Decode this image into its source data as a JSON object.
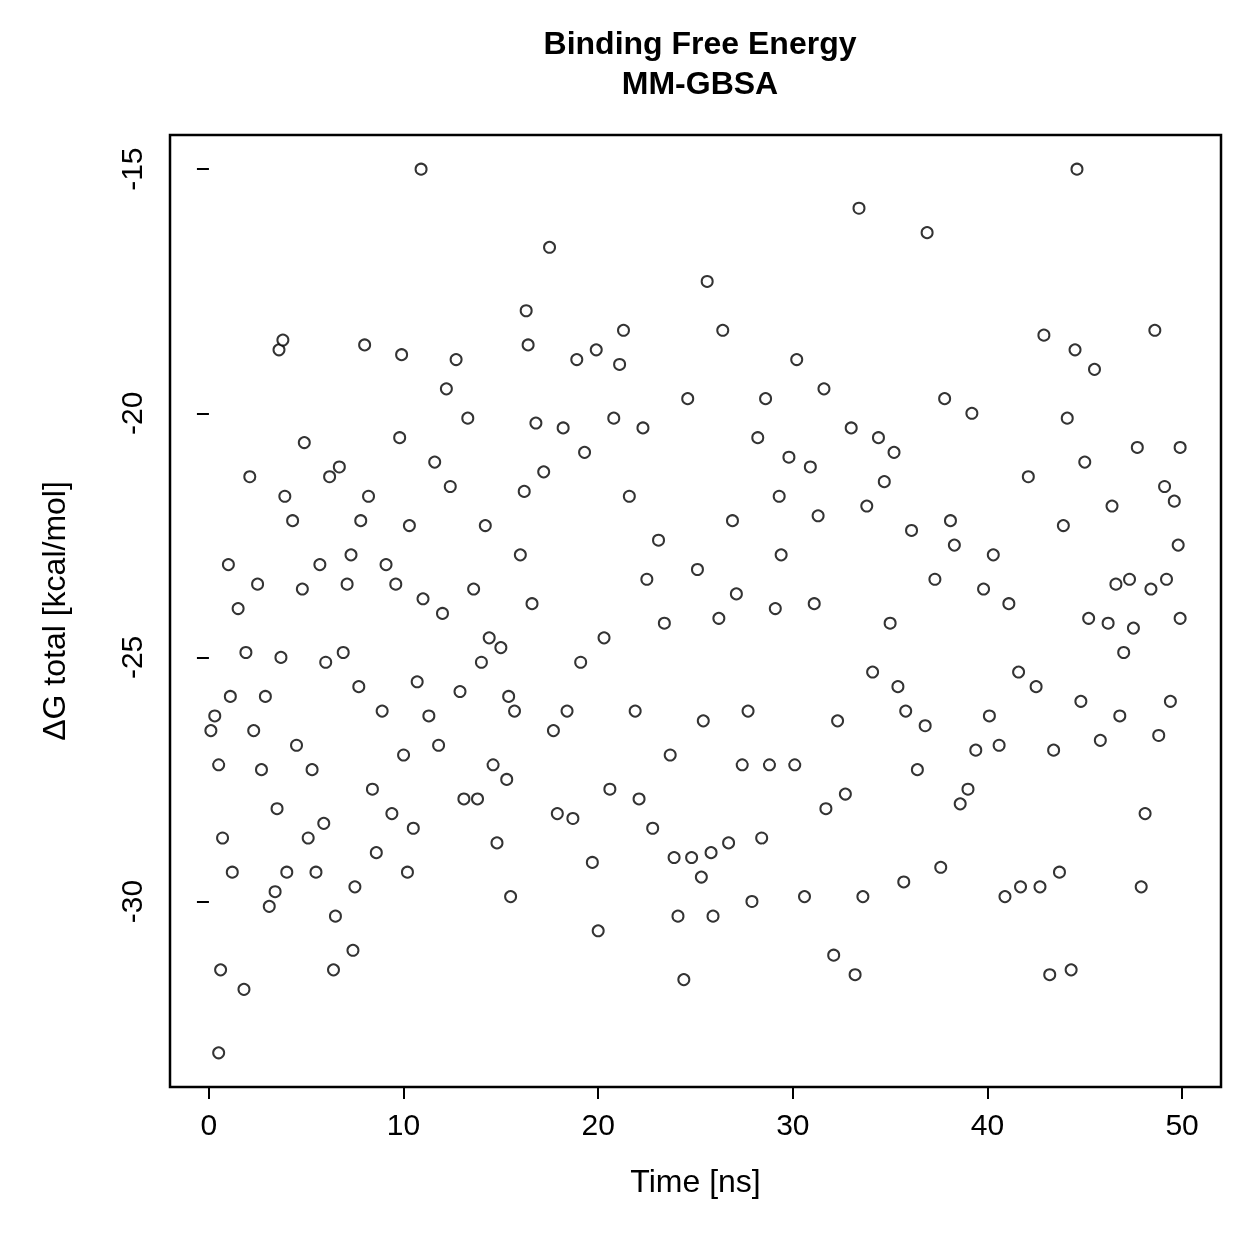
{
  "chart_data": {
    "type": "scatter",
    "title": "Binding Free Energy",
    "subtitle": "MM-GBSA",
    "xlabel": "Time [ns]",
    "ylabel": "ΔG total [kcal/mol]",
    "xlim": [
      -2,
      52
    ],
    "ylim": [
      -33.8,
      -14.3
    ],
    "xticks": [
      0,
      10,
      20,
      30,
      40,
      50
    ],
    "yticks": [
      -30,
      -25,
      -20,
      -15
    ],
    "grid": false,
    "marker": "circle",
    "series": [
      {
        "color": "#000000",
        "x": [
          0.1,
          0.3,
          0.5,
          0.5,
          0.6,
          0.7,
          1.0,
          1.1,
          1.2,
          1.5,
          1.8,
          1.9,
          2.1,
          2.3,
          2.5,
          2.7,
          2.9,
          3.1,
          3.4,
          3.5,
          3.6,
          3.8,
          3.7,
          3.9,
          4.0,
          4.3,
          4.5,
          4.8,
          4.9,
          5.1,
          5.3,
          5.5,
          5.7,
          5.9,
          6.0,
          6.2,
          6.4,
          6.5,
          6.7,
          6.9,
          7.1,
          7.3,
          7.4,
          7.5,
          7.7,
          7.8,
          8.0,
          8.2,
          8.4,
          8.6,
          8.9,
          9.1,
          9.4,
          9.6,
          9.8,
          9.9,
          10.0,
          10.2,
          10.3,
          10.5,
          10.7,
          10.9,
          11.0,
          11.3,
          11.6,
          11.8,
          12.0,
          12.2,
          12.4,
          12.7,
          12.9,
          13.1,
          13.3,
          13.6,
          13.8,
          14.0,
          14.2,
          14.4,
          14.6,
          14.8,
          15.0,
          15.3,
          15.4,
          15.5,
          15.7,
          16.0,
          16.2,
          16.3,
          16.4,
          16.6,
          16.8,
          17.2,
          17.5,
          17.7,
          17.9,
          18.2,
          18.4,
          18.7,
          18.9,
          19.1,
          19.3,
          19.7,
          19.9,
          20.0,
          20.3,
          20.6,
          20.8,
          21.1,
          21.3,
          21.6,
          21.9,
          22.1,
          22.3,
          22.5,
          22.8,
          23.1,
          23.4,
          23.7,
          23.9,
          24.1,
          24.4,
          24.6,
          24.8,
          25.1,
          25.3,
          25.4,
          25.6,
          25.8,
          25.9,
          26.2,
          26.4,
          26.7,
          26.9,
          27.1,
          27.4,
          27.7,
          27.9,
          28.2,
          28.4,
          28.6,
          28.8,
          29.1,
          29.3,
          29.4,
          29.8,
          30.1,
          30.2,
          30.6,
          30.9,
          31.1,
          31.3,
          31.6,
          31.7,
          32.1,
          32.3,
          32.7,
          33.0,
          33.2,
          33.4,
          33.6,
          33.8,
          34.1,
          34.4,
          34.7,
          35.0,
          35.2,
          35.4,
          35.7,
          35.8,
          36.1,
          36.4,
          36.8,
          36.9,
          37.3,
          37.6,
          37.8,
          38.1,
          38.3,
          38.6,
          39.0,
          39.2,
          39.4,
          39.8,
          40.1,
          40.3,
          40.6,
          40.9,
          41.1,
          41.6,
          41.7,
          42.1,
          42.5,
          42.7,
          42.9,
          43.2,
          43.4,
          43.7,
          43.9,
          44.1,
          44.3,
          44.5,
          44.6,
          44.8,
          45.0,
          45.2,
          45.5,
          45.8,
          46.2,
          46.4,
          46.6,
          46.8,
          47.0,
          47.3,
          47.5,
          47.7,
          47.9,
          48.1,
          48.4,
          48.6,
          48.8,
          49.1,
          49.2,
          49.4,
          49.6,
          49.8,
          49.9,
          49.9
        ],
        "values": [
          -26.5,
          -26.2,
          -27.2,
          -33.1,
          -31.4,
          -28.7,
          -23.1,
          -25.8,
          -29.4,
          -24.0,
          -31.8,
          -24.9,
          -21.3,
          -26.5,
          -23.5,
          -27.3,
          -25.8,
          -30.1,
          -29.8,
          -28.1,
          -18.7,
          -18.5,
          -25.0,
          -21.7,
          -29.4,
          -22.2,
          -26.8,
          -23.6,
          -20.6,
          -28.7,
          -27.3,
          -29.4,
          -23.1,
          -28.4,
          -25.1,
          -21.3,
          -31.4,
          -30.3,
          -21.1,
          -24.9,
          -23.5,
          -22.9,
          -31.0,
          -29.7,
          -25.6,
          -22.2,
          -18.6,
          -21.7,
          -27.7,
          -29.0,
          -26.1,
          -23.1,
          -28.2,
          -23.5,
          -20.5,
          -18.8,
          -27.0,
          -29.4,
          -22.3,
          -28.5,
          -25.5,
          -15.0,
          -23.8,
          -26.2,
          -21.0,
          -26.8,
          -24.1,
          -19.5,
          -21.5,
          -18.9,
          -25.7,
          -27.9,
          -20.1,
          -23.6,
          -27.9,
          -25.1,
          -22.3,
          -24.6,
          -27.2,
          -28.8,
          -24.8,
          -27.5,
          -25.8,
          -29.9,
          -26.1,
          -22.9,
          -21.6,
          -17.9,
          -18.6,
          -23.9,
          -20.2,
          -21.2,
          -16.6,
          -26.5,
          -28.2,
          -20.3,
          -26.1,
          -28.3,
          -18.9,
          -25.1,
          -20.8,
          -29.2,
          -18.7,
          -30.6,
          -24.6,
          -27.7,
          -20.1,
          -19.0,
          -18.3,
          -21.7,
          -26.1,
          -27.9,
          -20.3,
          -23.4,
          -28.5,
          -22.6,
          -24.3,
          -27.0,
          -29.1,
          -30.3,
          -31.6,
          -19.7,
          -29.1,
          -23.2,
          -29.5,
          -26.3,
          -17.3,
          -29.0,
          -30.3,
          -24.2,
          -18.3,
          -28.8,
          -22.2,
          -23.7,
          -27.2,
          -26.1,
          -30.0,
          -20.5,
          -28.7,
          -19.7,
          -27.2,
          -24.0,
          -21.7,
          -22.9,
          -20.9,
          -27.2,
          -18.9,
          -29.9,
          -21.1,
          -23.9,
          -22.1,
          -19.5,
          -28.1,
          -31.1,
          -26.3,
          -27.8,
          -20.3,
          -31.5,
          -15.8,
          -29.9,
          -21.9,
          -25.3,
          -20.5,
          -21.4,
          -24.3,
          -20.8,
          -25.6,
          -29.6,
          -26.1,
          -22.4,
          -27.3,
          -26.4,
          -16.3,
          -23.4,
          -29.3,
          -19.7,
          -22.2,
          -22.7,
          -28.0,
          -27.7,
          -20.0,
          -26.9,
          -23.6,
          -26.2,
          -22.9,
          -26.8,
          -29.9,
          -23.9,
          -25.3,
          -29.7,
          -21.3,
          -25.6,
          -29.7,
          -18.4,
          -31.5,
          -26.9,
          -29.4,
          -22.3,
          -20.1,
          -31.4,
          -18.7,
          -15.0,
          -25.9,
          -21.0,
          -24.2,
          -19.1,
          -26.7,
          -24.3,
          -21.9,
          -23.5,
          -26.2,
          -24.9,
          -23.4,
          -24.4,
          -20.7,
          -29.7,
          -28.2,
          -23.6,
          -18.3,
          -26.6,
          -21.5,
          -23.4,
          -25.9,
          -21.8,
          -22.7,
          -24.2,
          -20.7
        ]
      }
    ]
  }
}
